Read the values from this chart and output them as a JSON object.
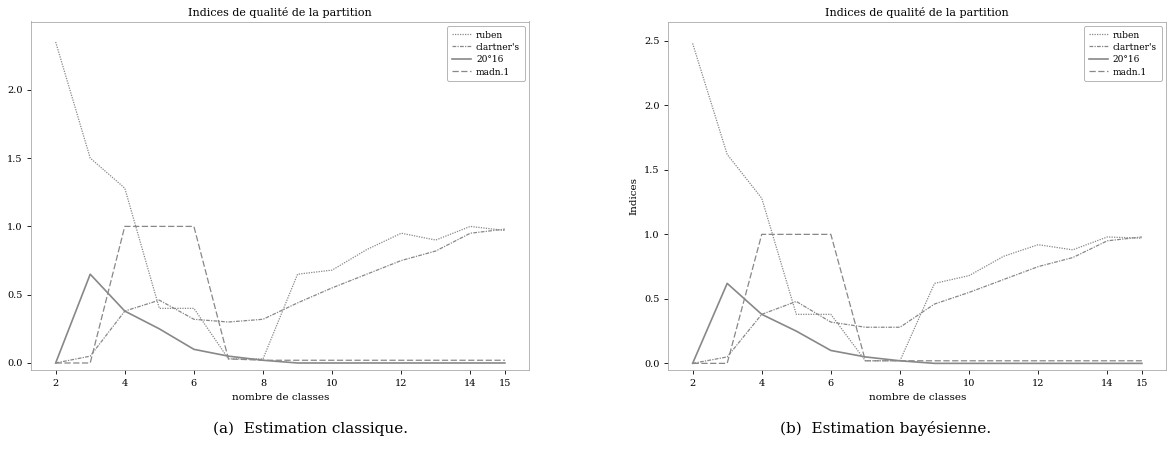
{
  "title": "Indices de qualité de la partition",
  "xlabel": "nombre de classes",
  "ylabel": "Indices",
  "subtitle_a": "(a)  Estimation classique.",
  "subtitle_b": "(b)  Estimation bayésienne.",
  "x": [
    2,
    3,
    4,
    5,
    6,
    7,
    8,
    9,
    10,
    11,
    12,
    13,
    14,
    15
  ],
  "xticks": [
    2,
    4,
    6,
    8,
    10,
    12,
    14,
    15
  ],
  "legend_labels": [
    "ruben",
    "clartner's",
    "20°16",
    "madn.1"
  ],
  "plot_a": {
    "ruben": [
      2.35,
      1.5,
      1.28,
      0.4,
      0.4,
      0.03,
      0.03,
      0.65,
      0.68,
      0.83,
      0.95,
      0.9,
      1.0,
      0.97
    ],
    "clartner": [
      0.0,
      0.05,
      0.38,
      0.46,
      0.32,
      0.3,
      0.32,
      0.44,
      0.55,
      0.65,
      0.75,
      0.82,
      0.95,
      0.98
    ],
    "serie3": [
      0.0,
      0.65,
      0.38,
      0.25,
      0.1,
      0.05,
      0.02,
      0.0,
      0.0,
      0.0,
      0.0,
      0.0,
      0.0,
      0.0
    ],
    "madn": [
      0.0,
      0.0,
      1.0,
      1.0,
      1.0,
      0.03,
      0.02,
      0.02,
      0.02,
      0.02,
      0.02,
      0.02,
      0.02,
      0.02
    ]
  },
  "plot_b": {
    "ruben": [
      2.48,
      1.62,
      1.28,
      0.38,
      0.38,
      0.02,
      0.02,
      0.62,
      0.68,
      0.83,
      0.92,
      0.88,
      0.98,
      0.97
    ],
    "clartner": [
      0.0,
      0.05,
      0.38,
      0.48,
      0.32,
      0.28,
      0.28,
      0.46,
      0.55,
      0.65,
      0.75,
      0.82,
      0.95,
      0.98
    ],
    "serie3": [
      0.0,
      0.62,
      0.38,
      0.25,
      0.1,
      0.05,
      0.02,
      0.0,
      0.0,
      0.0,
      0.0,
      0.0,
      0.0,
      0.0
    ],
    "madn": [
      0.0,
      0.0,
      1.0,
      1.0,
      1.0,
      0.02,
      0.02,
      0.02,
      0.02,
      0.02,
      0.02,
      0.02,
      0.02,
      0.02
    ]
  },
  "ylim_a": [
    -0.05,
    2.5
  ],
  "ylim_b": [
    -0.05,
    2.65
  ],
  "yticks_a": [
    0.0,
    0.5,
    1.0,
    1.5,
    2.0
  ],
  "yticks_b": [
    0.0,
    0.5,
    1.0,
    1.5,
    2.0,
    2.5
  ],
  "bg_color": "#ffffff",
  "line_color": "#888888"
}
